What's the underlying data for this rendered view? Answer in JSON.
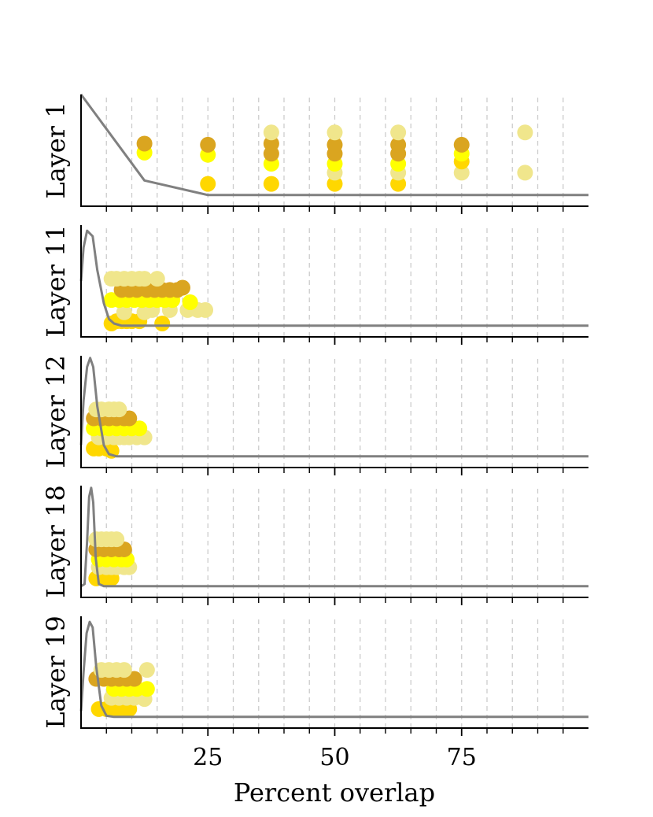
{
  "chart_data": {
    "type": "scatter",
    "xlabel": "Percent overlap",
    "xlim": [
      0,
      100
    ],
    "x_ticks": [
      25,
      50,
      75
    ],
    "x_ticks_minor": [
      5,
      10,
      15,
      20,
      25,
      30,
      35,
      40,
      45,
      50,
      55,
      60,
      65,
      70,
      75,
      80,
      85,
      90,
      95
    ],
    "grid_x": true,
    "colors": {
      "gold_dark": "#DAA520",
      "yellow": "#FFFF00",
      "gold": "#FFD700",
      "khaki": "#F0E68C",
      "density_line": "#808080",
      "grid": "#cccccc"
    },
    "panels": [
      {
        "ylabel": "Layer 1",
        "density": [
          [
            0,
            1.0
          ],
          [
            12.5,
            0.23
          ],
          [
            25,
            0.1
          ],
          [
            37.5,
            0.1
          ],
          [
            50,
            0.1
          ],
          [
            100,
            0.1
          ]
        ],
        "points": [
          {
            "x": 12.5,
            "y": 0.48,
            "c": "yellow"
          },
          {
            "x": 12.5,
            "y": 0.56,
            "c": "gold_dark"
          },
          {
            "x": 25,
            "y": 0.2,
            "c": "gold"
          },
          {
            "x": 25,
            "y": 0.46,
            "c": "yellow"
          },
          {
            "x": 25,
            "y": 0.55,
            "c": "gold_dark"
          },
          {
            "x": 37.5,
            "y": 0.2,
            "c": "gold"
          },
          {
            "x": 37.5,
            "y": 0.38,
            "c": "yellow"
          },
          {
            "x": 37.5,
            "y": 0.47,
            "c": "gold_dark"
          },
          {
            "x": 37.5,
            "y": 0.56,
            "c": "gold_dark"
          },
          {
            "x": 37.5,
            "y": 0.66,
            "c": "khaki"
          },
          {
            "x": 50,
            "y": 0.2,
            "c": "gold"
          },
          {
            "x": 50,
            "y": 0.3,
            "c": "khaki"
          },
          {
            "x": 50,
            "y": 0.38,
            "c": "yellow"
          },
          {
            "x": 50,
            "y": 0.47,
            "c": "gold_dark"
          },
          {
            "x": 50,
            "y": 0.55,
            "c": "gold_dark"
          },
          {
            "x": 50,
            "y": 0.66,
            "c": "khaki"
          },
          {
            "x": 62.5,
            "y": 0.2,
            "c": "gold"
          },
          {
            "x": 62.5,
            "y": 0.3,
            "c": "khaki"
          },
          {
            "x": 62.5,
            "y": 0.38,
            "c": "yellow"
          },
          {
            "x": 62.5,
            "y": 0.47,
            "c": "gold_dark"
          },
          {
            "x": 62.5,
            "y": 0.55,
            "c": "gold_dark"
          },
          {
            "x": 62.5,
            "y": 0.66,
            "c": "khaki"
          },
          {
            "x": 75,
            "y": 0.3,
            "c": "khaki"
          },
          {
            "x": 75,
            "y": 0.4,
            "c": "gold"
          },
          {
            "x": 75,
            "y": 0.47,
            "c": "yellow"
          },
          {
            "x": 75,
            "y": 0.55,
            "c": "gold_dark"
          },
          {
            "x": 87.5,
            "y": 0.3,
            "c": "khaki"
          },
          {
            "x": 87.5,
            "y": 0.66,
            "c": "khaki"
          }
        ]
      },
      {
        "ylabel": "Layer 11",
        "density": [
          [
            0,
            0.5
          ],
          [
            0.5,
            0.8
          ],
          [
            1.2,
            0.95
          ],
          [
            2.3,
            0.9
          ],
          [
            3.2,
            0.6
          ],
          [
            4.5,
            0.3
          ],
          [
            5.5,
            0.16
          ],
          [
            6.5,
            0.12
          ],
          [
            8,
            0.1
          ],
          [
            100,
            0.1
          ]
        ],
        "points": [
          {
            "x": 6,
            "y": 0.12,
            "c": "gold"
          },
          {
            "x": 7,
            "y": 0.14,
            "c": "gold"
          },
          {
            "x": 8,
            "y": 0.14,
            "c": "gold"
          },
          {
            "x": 9,
            "y": 0.14,
            "c": "gold"
          },
          {
            "x": 10,
            "y": 0.14,
            "c": "gold"
          },
          {
            "x": 11.5,
            "y": 0.14,
            "c": "gold"
          },
          {
            "x": 16,
            "y": 0.12,
            "c": "gold"
          },
          {
            "x": 8.5,
            "y": 0.22,
            "c": "khaki"
          },
          {
            "x": 12.5,
            "y": 0.22,
            "c": "khaki"
          },
          {
            "x": 14,
            "y": 0.24,
            "c": "khaki"
          },
          {
            "x": 17.5,
            "y": 0.24,
            "c": "khaki"
          },
          {
            "x": 21,
            "y": 0.24,
            "c": "khaki"
          },
          {
            "x": 23,
            "y": 0.24,
            "c": "khaki"
          },
          {
            "x": 24.5,
            "y": 0.24,
            "c": "khaki"
          },
          {
            "x": 6,
            "y": 0.33,
            "c": "yellow"
          },
          {
            "x": 7.5,
            "y": 0.33,
            "c": "yellow"
          },
          {
            "x": 9,
            "y": 0.33,
            "c": "yellow"
          },
          {
            "x": 10.5,
            "y": 0.33,
            "c": "yellow"
          },
          {
            "x": 12,
            "y": 0.33,
            "c": "yellow"
          },
          {
            "x": 13.5,
            "y": 0.33,
            "c": "yellow"
          },
          {
            "x": 15,
            "y": 0.33,
            "c": "yellow"
          },
          {
            "x": 16.5,
            "y": 0.33,
            "c": "yellow"
          },
          {
            "x": 18,
            "y": 0.33,
            "c": "yellow"
          },
          {
            "x": 21.5,
            "y": 0.31,
            "c": "yellow"
          },
          {
            "x": 8,
            "y": 0.42,
            "c": "gold_dark"
          },
          {
            "x": 9.5,
            "y": 0.42,
            "c": "gold_dark"
          },
          {
            "x": 11,
            "y": 0.42,
            "c": "gold_dark"
          },
          {
            "x": 13,
            "y": 0.42,
            "c": "gold_dark"
          },
          {
            "x": 14.5,
            "y": 0.42,
            "c": "gold_dark"
          },
          {
            "x": 16,
            "y": 0.42,
            "c": "gold_dark"
          },
          {
            "x": 17.5,
            "y": 0.42,
            "c": "gold_dark"
          },
          {
            "x": 19,
            "y": 0.42,
            "c": "gold_dark"
          },
          {
            "x": 20,
            "y": 0.44,
            "c": "gold_dark"
          },
          {
            "x": 6,
            "y": 0.52,
            "c": "khaki"
          },
          {
            "x": 7,
            "y": 0.52,
            "c": "khaki"
          },
          {
            "x": 8.5,
            "y": 0.52,
            "c": "khaki"
          },
          {
            "x": 10,
            "y": 0.52,
            "c": "khaki"
          },
          {
            "x": 11.5,
            "y": 0.52,
            "c": "khaki"
          },
          {
            "x": 12.5,
            "y": 0.52,
            "c": "khaki"
          },
          {
            "x": 15,
            "y": 0.52,
            "c": "khaki"
          }
        ]
      },
      {
        "ylabel": "Layer 12",
        "density": [
          [
            0,
            0.2
          ],
          [
            0.5,
            0.6
          ],
          [
            1.2,
            0.9
          ],
          [
            1.8,
            0.98
          ],
          [
            2.4,
            0.9
          ],
          [
            3.2,
            0.55
          ],
          [
            4.5,
            0.2
          ],
          [
            5.5,
            0.12
          ],
          [
            7,
            0.1
          ],
          [
            100,
            0.1
          ]
        ],
        "points": [
          {
            "x": 2.5,
            "y": 0.17,
            "c": "gold"
          },
          {
            "x": 3.5,
            "y": 0.17,
            "c": "gold"
          },
          {
            "x": 5,
            "y": 0.17,
            "c": "gold"
          },
          {
            "x": 6,
            "y": 0.15,
            "c": "gold"
          },
          {
            "x": 3.5,
            "y": 0.27,
            "c": "khaki"
          },
          {
            "x": 5,
            "y": 0.27,
            "c": "khaki"
          },
          {
            "x": 6.5,
            "y": 0.27,
            "c": "khaki"
          },
          {
            "x": 7.5,
            "y": 0.27,
            "c": "khaki"
          },
          {
            "x": 8.5,
            "y": 0.27,
            "c": "khaki"
          },
          {
            "x": 9.5,
            "y": 0.27,
            "c": "khaki"
          },
          {
            "x": 11,
            "y": 0.27,
            "c": "khaki"
          },
          {
            "x": 12.5,
            "y": 0.27,
            "c": "khaki"
          },
          {
            "x": 2.5,
            "y": 0.35,
            "c": "yellow"
          },
          {
            "x": 4,
            "y": 0.35,
            "c": "yellow"
          },
          {
            "x": 5.5,
            "y": 0.35,
            "c": "yellow"
          },
          {
            "x": 7,
            "y": 0.35,
            "c": "yellow"
          },
          {
            "x": 8.5,
            "y": 0.35,
            "c": "yellow"
          },
          {
            "x": 10,
            "y": 0.35,
            "c": "yellow"
          },
          {
            "x": 11.5,
            "y": 0.35,
            "c": "yellow"
          },
          {
            "x": 2.5,
            "y": 0.44,
            "c": "gold_dark"
          },
          {
            "x": 4,
            "y": 0.44,
            "c": "gold_dark"
          },
          {
            "x": 5.5,
            "y": 0.44,
            "c": "gold_dark"
          },
          {
            "x": 7,
            "y": 0.44,
            "c": "gold_dark"
          },
          {
            "x": 8.5,
            "y": 0.44,
            "c": "gold_dark"
          },
          {
            "x": 9.5,
            "y": 0.44,
            "c": "gold_dark"
          },
          {
            "x": 3,
            "y": 0.52,
            "c": "khaki"
          },
          {
            "x": 4,
            "y": 0.52,
            "c": "khaki"
          },
          {
            "x": 5.5,
            "y": 0.52,
            "c": "khaki"
          },
          {
            "x": 6.5,
            "y": 0.52,
            "c": "khaki"
          },
          {
            "x": 7.5,
            "y": 0.52,
            "c": "khaki"
          }
        ]
      },
      {
        "ylabel": "Layer 18",
        "density": [
          [
            0,
            0.1
          ],
          [
            0.7,
            0.12
          ],
          [
            1.2,
            0.5
          ],
          [
            1.6,
            0.9
          ],
          [
            2.0,
            0.98
          ],
          [
            2.4,
            0.85
          ],
          [
            2.9,
            0.35
          ],
          [
            3.5,
            0.12
          ],
          [
            4.5,
            0.1
          ],
          [
            100,
            0.1
          ]
        ],
        "points": [
          {
            "x": 3,
            "y": 0.17,
            "c": "gold"
          },
          {
            "x": 4.5,
            "y": 0.17,
            "c": "gold"
          },
          {
            "x": 6,
            "y": 0.17,
            "c": "gold"
          },
          {
            "x": 3.5,
            "y": 0.27,
            "c": "khaki"
          },
          {
            "x": 5,
            "y": 0.27,
            "c": "khaki"
          },
          {
            "x": 6,
            "y": 0.27,
            "c": "khaki"
          },
          {
            "x": 7,
            "y": 0.27,
            "c": "khaki"
          },
          {
            "x": 8.5,
            "y": 0.27,
            "c": "khaki"
          },
          {
            "x": 9.5,
            "y": 0.27,
            "c": "khaki"
          },
          {
            "x": 3.5,
            "y": 0.34,
            "c": "yellow"
          },
          {
            "x": 5,
            "y": 0.34,
            "c": "yellow"
          },
          {
            "x": 6.5,
            "y": 0.34,
            "c": "yellow"
          },
          {
            "x": 8,
            "y": 0.34,
            "c": "yellow"
          },
          {
            "x": 9,
            "y": 0.34,
            "c": "yellow"
          },
          {
            "x": 3,
            "y": 0.43,
            "c": "gold_dark"
          },
          {
            "x": 4.5,
            "y": 0.43,
            "c": "gold_dark"
          },
          {
            "x": 6,
            "y": 0.43,
            "c": "gold_dark"
          },
          {
            "x": 7.5,
            "y": 0.43,
            "c": "gold_dark"
          },
          {
            "x": 8.5,
            "y": 0.43,
            "c": "gold_dark"
          },
          {
            "x": 3,
            "y": 0.52,
            "c": "khaki"
          },
          {
            "x": 4,
            "y": 0.52,
            "c": "khaki"
          },
          {
            "x": 5,
            "y": 0.52,
            "c": "khaki"
          },
          {
            "x": 6,
            "y": 0.52,
            "c": "khaki"
          },
          {
            "x": 7,
            "y": 0.52,
            "c": "khaki"
          }
        ]
      },
      {
        "ylabel": "Layer 19",
        "density": [
          [
            0,
            0.15
          ],
          [
            0.5,
            0.5
          ],
          [
            1.1,
            0.85
          ],
          [
            1.7,
            0.95
          ],
          [
            2.3,
            0.9
          ],
          [
            3.0,
            0.55
          ],
          [
            4.0,
            0.2
          ],
          [
            5.0,
            0.11
          ],
          [
            6.5,
            0.1
          ],
          [
            100,
            0.1
          ]
        ],
        "points": [
          {
            "x": 3.5,
            "y": 0.17,
            "c": "gold"
          },
          {
            "x": 5,
            "y": 0.17,
            "c": "gold"
          },
          {
            "x": 6.5,
            "y": 0.17,
            "c": "gold"
          },
          {
            "x": 8,
            "y": 0.17,
            "c": "gold"
          },
          {
            "x": 9.5,
            "y": 0.17,
            "c": "gold"
          },
          {
            "x": 6,
            "y": 0.27,
            "c": "khaki"
          },
          {
            "x": 7.5,
            "y": 0.27,
            "c": "khaki"
          },
          {
            "x": 9,
            "y": 0.27,
            "c": "khaki"
          },
          {
            "x": 10.5,
            "y": 0.27,
            "c": "khaki"
          },
          {
            "x": 12.5,
            "y": 0.26,
            "c": "khaki"
          },
          {
            "x": 6.5,
            "y": 0.35,
            "c": "yellow"
          },
          {
            "x": 8,
            "y": 0.35,
            "c": "yellow"
          },
          {
            "x": 9.5,
            "y": 0.35,
            "c": "yellow"
          },
          {
            "x": 11,
            "y": 0.35,
            "c": "yellow"
          },
          {
            "x": 13,
            "y": 0.35,
            "c": "yellow"
          },
          {
            "x": 3,
            "y": 0.44,
            "c": "gold_dark"
          },
          {
            "x": 4.5,
            "y": 0.44,
            "c": "gold_dark"
          },
          {
            "x": 6,
            "y": 0.44,
            "c": "gold_dark"
          },
          {
            "x": 7.5,
            "y": 0.44,
            "c": "gold_dark"
          },
          {
            "x": 9,
            "y": 0.44,
            "c": "gold_dark"
          },
          {
            "x": 10.5,
            "y": 0.44,
            "c": "gold_dark"
          },
          {
            "x": 4,
            "y": 0.52,
            "c": "khaki"
          },
          {
            "x": 5.5,
            "y": 0.52,
            "c": "khaki"
          },
          {
            "x": 7,
            "y": 0.52,
            "c": "khaki"
          },
          {
            "x": 8.5,
            "y": 0.52,
            "c": "khaki"
          },
          {
            "x": 13,
            "y": 0.52,
            "c": "khaki"
          }
        ]
      }
    ]
  }
}
